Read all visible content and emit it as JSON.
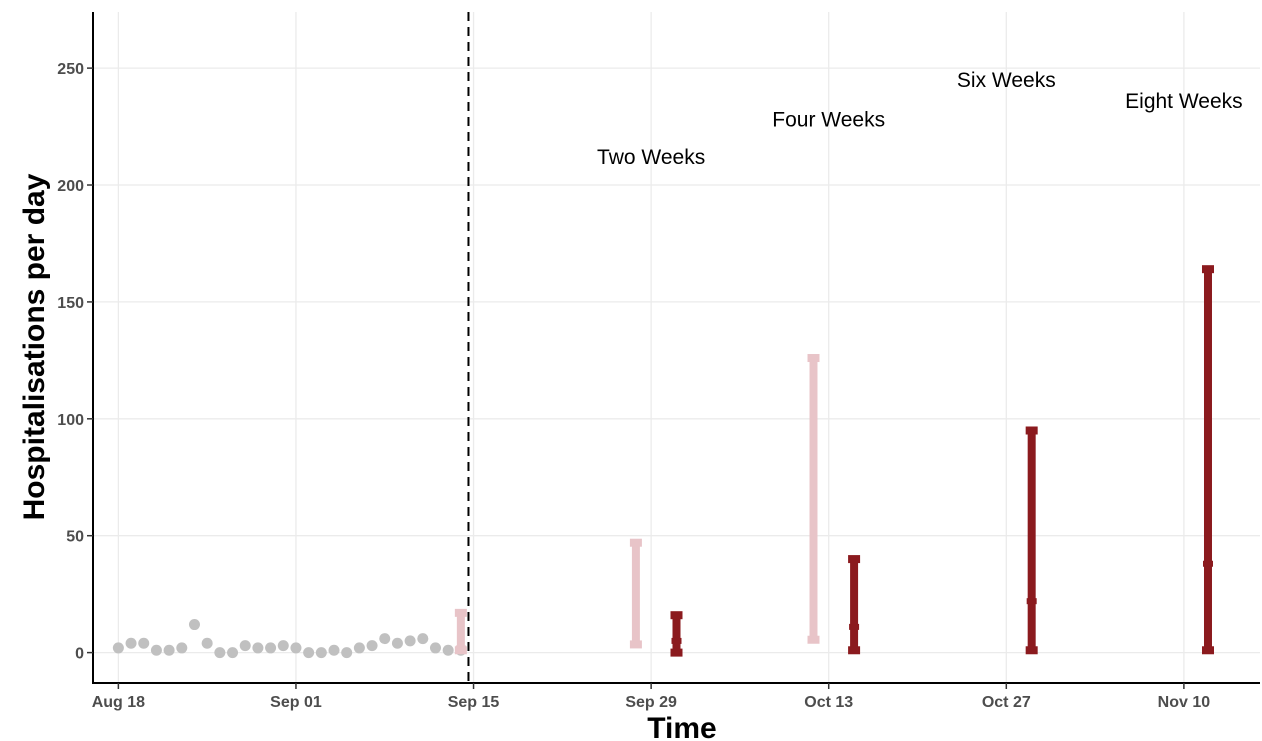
{
  "chart_data": {
    "type": "scatter",
    "xlabel": "Time",
    "ylabel": "Hospitalisations per day",
    "ylim": [
      -13,
      274
    ],
    "xlim": [
      "2020-08-16",
      "2020-11-16"
    ],
    "y_ticks": [
      "0",
      "50",
      "100",
      "150",
      "200",
      "250"
    ],
    "x_ticks": [
      {
        "date": "2020-08-18",
        "label": "Aug 18"
      },
      {
        "date": "2020-09-01",
        "label": "Sep 01"
      },
      {
        "date": "2020-09-15",
        "label": "Sep 15"
      },
      {
        "date": "2020-09-29",
        "label": "Sep 29"
      },
      {
        "date": "2020-10-13",
        "label": "Oct 13"
      },
      {
        "date": "2020-10-27",
        "label": "Oct 27"
      },
      {
        "date": "2020-11-10",
        "label": "Nov 10"
      }
    ],
    "grid": true,
    "vline": {
      "date": "2020-09-15",
      "style": "dashed",
      "color": "#000000"
    },
    "observed": {
      "color": "#c0c0c0",
      "x": [
        "2020-08-18",
        "2020-08-19",
        "2020-08-20",
        "2020-08-21",
        "2020-08-22",
        "2020-08-23",
        "2020-08-24",
        "2020-08-25",
        "2020-08-26",
        "2020-08-27",
        "2020-08-28",
        "2020-08-29",
        "2020-08-30",
        "2020-08-31",
        "2020-09-01",
        "2020-09-02",
        "2020-09-03",
        "2020-09-04",
        "2020-09-05",
        "2020-09-06",
        "2020-09-07",
        "2020-09-08",
        "2020-09-09",
        "2020-09-10",
        "2020-09-11",
        "2020-09-12",
        "2020-09-13",
        "2020-09-14"
      ],
      "y": [
        2,
        4,
        4,
        1,
        1,
        2,
        12,
        4,
        0,
        0,
        3,
        2,
        2,
        3,
        2,
        0,
        0,
        1,
        0,
        2,
        3,
        6,
        4,
        5,
        6,
        2,
        1,
        1
      ]
    },
    "intervals": [
      {
        "date": "2020-09-14",
        "offset_days": 0.0,
        "lower": 1,
        "median": 1.8,
        "upper": 17,
        "color": "#e8c4c8"
      },
      {
        "date": "2020-09-28",
        "offset_days": -0.2,
        "lower": 3.5,
        "median": 3.5,
        "upper": 47,
        "color": "#e8c4c8"
      },
      {
        "date": "2020-10-01",
        "offset_days": 0.0,
        "lower": 0,
        "median": 5,
        "upper": 16,
        "color": "#8b1a1e"
      },
      {
        "date": "2020-10-12",
        "offset_days": -0.2,
        "lower": 5.5,
        "median": 5.5,
        "upper": 126,
        "color": "#e8c4c8"
      },
      {
        "date": "2020-10-15",
        "offset_days": 0.0,
        "lower": 1,
        "median": 11,
        "upper": 40,
        "color": "#8b1a1e"
      },
      {
        "date": "2020-10-29",
        "offset_days": 0.0,
        "lower": 1,
        "median": 22,
        "upper": 95,
        "color": "#8b1a1e"
      },
      {
        "date": "2020-11-12",
        "offset_days": -0.1,
        "lower": 1,
        "median": 38,
        "upper": 164,
        "color": "#8b1a1e"
      }
    ],
    "annotations": [
      {
        "text": "Two Weeks",
        "date": "2020-09-29",
        "y": 212
      },
      {
        "text": "Four Weeks",
        "date": "2020-10-13",
        "y": 228
      },
      {
        "text": "Six Weeks",
        "date": "2020-10-27",
        "y": 245
      },
      {
        "text": "Eight Weeks",
        "date": "2020-11-10",
        "y": 236
      }
    ]
  }
}
